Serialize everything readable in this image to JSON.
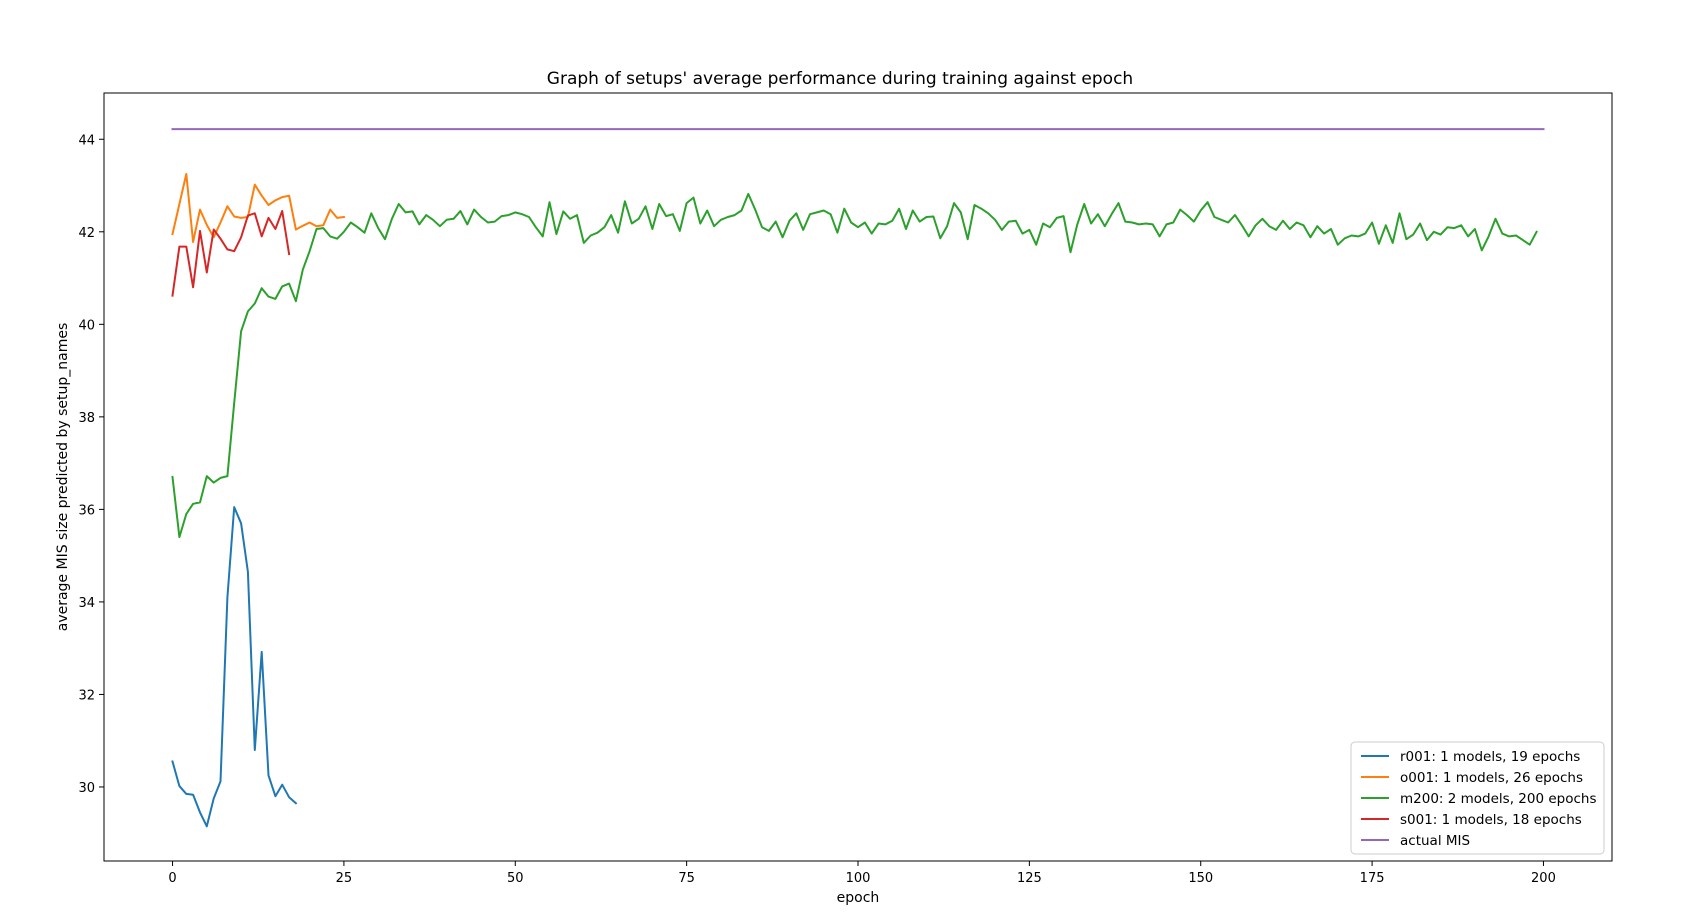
{
  "chart_data": {
    "type": "line",
    "title": "Graph of setups' average performance during training against epoch",
    "xlabel": "epoch",
    "ylabel": "average MIS size predicted by setup_names",
    "xlim": [
      -10,
      210
    ],
    "ylim": [
      28.4,
      45.0
    ],
    "xticks": [
      0,
      25,
      50,
      75,
      100,
      125,
      150,
      175,
      200
    ],
    "yticks": [
      30,
      32,
      34,
      36,
      38,
      40,
      42,
      44
    ],
    "grid": false,
    "legend_position": "lower-right",
    "series": [
      {
        "name": "r001: 1 models, 19 epochs",
        "color": "#1f77b4",
        "x": [
          0,
          1,
          2,
          3,
          4,
          5,
          6,
          7,
          8,
          9,
          10,
          11,
          12,
          13,
          14,
          15,
          16,
          17,
          18
        ],
        "y": [
          30.55,
          30.02,
          29.85,
          29.83,
          29.45,
          29.15,
          29.75,
          30.12,
          34.1,
          36.05,
          35.7,
          34.65,
          30.8,
          32.92,
          30.25,
          29.8,
          30.05,
          29.78,
          29.65
        ]
      },
      {
        "name": "o001: 1 models, 26 epochs",
        "color": "#ff7f0e",
        "x": [
          0,
          1,
          2,
          3,
          4,
          5,
          6,
          7,
          8,
          9,
          10,
          11,
          12,
          13,
          14,
          15,
          16,
          17,
          18,
          19,
          20,
          21,
          22,
          23,
          24,
          25
        ],
        "y": [
          41.95,
          42.6,
          43.25,
          41.78,
          42.48,
          42.15,
          41.88,
          42.2,
          42.55,
          42.33,
          42.3,
          42.32,
          43.02,
          42.78,
          42.58,
          42.68,
          42.75,
          42.78,
          42.05,
          42.13,
          42.2,
          42.12,
          42.14,
          42.48,
          42.3,
          42.32
        ]
      },
      {
        "name": "m200: 2 models, 200 epochs",
        "color": "#2ca02c",
        "x": [
          0,
          1,
          2,
          3,
          4,
          5,
          6,
          7,
          8,
          9,
          10,
          11,
          12,
          13,
          14,
          15,
          16,
          17,
          18,
          19,
          20,
          21,
          22,
          23,
          24,
          25,
          26,
          27,
          28,
          29,
          30,
          31,
          32,
          33,
          34,
          35,
          36,
          37,
          38,
          39,
          40,
          41,
          42,
          43,
          44,
          45,
          46,
          47,
          48,
          49,
          50,
          51,
          52,
          53,
          54,
          55,
          56,
          57,
          58,
          59,
          60,
          61,
          62,
          63,
          64,
          65,
          66,
          67,
          68,
          69,
          70,
          71,
          72,
          73,
          74,
          75,
          76,
          77,
          78,
          79,
          80,
          81,
          82,
          83,
          84,
          85,
          86,
          87,
          88,
          89,
          90,
          91,
          92,
          93,
          94,
          95,
          96,
          97,
          98,
          99,
          100,
          101,
          102,
          103,
          104,
          105,
          106,
          107,
          108,
          109,
          110,
          111,
          112,
          113,
          114,
          115,
          116,
          117,
          118,
          119,
          120,
          121,
          122,
          123,
          124,
          125,
          126,
          127,
          128,
          129,
          130,
          131,
          132,
          133,
          134,
          135,
          136,
          137,
          138,
          139,
          140,
          141,
          142,
          143,
          144,
          145,
          146,
          147,
          148,
          149,
          150,
          151,
          152,
          153,
          154,
          155,
          156,
          157,
          158,
          159,
          160,
          161,
          162,
          163,
          164,
          165,
          166,
          167,
          168,
          169,
          170,
          171,
          172,
          173,
          174,
          175,
          176,
          177,
          178,
          179,
          180,
          181,
          182,
          183,
          184,
          185,
          186,
          187,
          188,
          189,
          190,
          191,
          192,
          193,
          194,
          195,
          196,
          197,
          198,
          199
        ],
        "y": [
          36.7,
          35.4,
          35.9,
          36.12,
          36.15,
          36.72,
          36.58,
          36.68,
          36.72,
          38.3,
          39.85,
          40.28,
          40.45,
          40.78,
          40.6,
          40.55,
          40.82,
          40.88,
          40.5,
          41.18,
          41.58,
          42.06,
          42.08,
          41.9,
          41.85,
          42.0,
          42.2,
          42.1,
          41.98,
          42.4,
          42.08,
          41.84,
          42.28,
          42.6,
          42.42,
          42.44,
          42.16,
          42.36,
          42.26,
          42.12,
          42.26,
          42.28,
          42.45,
          42.16,
          42.48,
          42.32,
          42.2,
          42.22,
          42.34,
          42.36,
          42.42,
          42.38,
          42.32,
          42.1,
          41.9,
          42.64,
          41.95,
          42.44,
          42.28,
          42.36,
          41.76,
          41.92,
          41.98,
          42.1,
          42.36,
          41.98,
          42.66,
          42.18,
          42.28,
          42.55,
          42.06,
          42.6,
          42.34,
          42.38,
          42.02,
          42.62,
          42.74,
          42.18,
          42.46,
          42.12,
          42.26,
          42.32,
          42.36,
          42.46,
          42.82,
          42.48,
          42.1,
          42.02,
          42.22,
          41.88,
          42.24,
          42.4,
          42.04,
          42.38,
          42.42,
          42.46,
          42.38,
          41.98,
          42.5,
          42.2,
          42.1,
          42.2,
          41.96,
          42.18,
          42.16,
          42.24,
          42.5,
          42.06,
          42.46,
          42.22,
          42.32,
          42.33,
          41.86,
          42.12,
          42.62,
          42.42,
          41.84,
          42.58,
          42.5,
          42.4,
          42.26,
          42.04,
          42.22,
          42.24,
          41.96,
          42.04,
          41.72,
          42.18,
          42.1,
          42.3,
          42.34,
          41.56,
          42.16,
          42.6,
          42.18,
          42.38,
          42.12,
          42.38,
          42.62,
          42.22,
          42.2,
          42.16,
          42.18,
          42.16,
          41.9,
          42.16,
          42.2,
          42.48,
          42.36,
          42.22,
          42.46,
          42.64,
          42.32,
          42.26,
          42.2,
          42.36,
          42.14,
          41.9,
          42.14,
          42.28,
          42.12,
          42.04,
          42.24,
          42.06,
          42.2,
          42.14,
          41.88,
          42.12,
          41.96,
          42.06,
          41.72,
          41.86,
          41.92,
          41.9,
          41.96,
          42.2,
          41.74,
          42.14,
          41.76,
          42.4,
          41.84,
          41.94,
          42.18,
          41.82,
          42.0,
          41.94,
          42.1,
          42.08,
          42.14,
          41.9,
          42.06,
          41.6,
          41.9,
          42.28,
          41.96,
          41.9,
          41.92,
          41.82,
          41.72,
          42.0
        ]
      },
      {
        "name": "s001: 1 models, 18 epochs",
        "color": "#d62728",
        "x": [
          0,
          1,
          2,
          3,
          4,
          5,
          6,
          7,
          8,
          9,
          10,
          11,
          12,
          13,
          14,
          15,
          16,
          17
        ],
        "y": [
          40.62,
          41.68,
          41.68,
          40.8,
          42.02,
          41.12,
          42.05,
          41.85,
          41.62,
          41.58,
          41.88,
          42.35,
          42.4,
          41.9,
          42.3,
          42.06,
          42.45,
          41.52
        ]
      },
      {
        "name": "actual MIS",
        "color": "#9467bd",
        "x": [
          0,
          200
        ],
        "y": [
          44.22,
          44.22
        ]
      }
    ]
  }
}
